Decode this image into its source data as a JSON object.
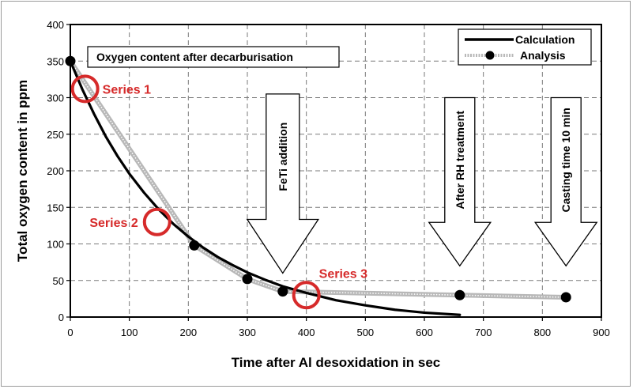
{
  "chart_data": {
    "type": "line",
    "xlabel": "Time after Al desoxidation in sec",
    "ylabel": "Total oxygen content in ppm",
    "xlim": [
      0,
      900
    ],
    "ylim": [
      0,
      400
    ],
    "xticks": [
      0,
      100,
      200,
      300,
      400,
      500,
      600,
      700,
      800,
      900
    ],
    "yticks": [
      0,
      50,
      100,
      150,
      200,
      250,
      300,
      350,
      400
    ],
    "grid": true,
    "legend_position": "top-right",
    "series": [
      {
        "name": "Calculation",
        "style": "solid-black-thick",
        "x": [
          0,
          20,
          40,
          60,
          80,
          100,
          125,
          150,
          175,
          200,
          225,
          250,
          275,
          300,
          330,
          360,
          400,
          450,
          500,
          550,
          600,
          660
        ],
        "y": [
          350,
          312,
          278,
          247,
          220,
          196,
          170,
          147,
          127,
          110,
          95,
          82,
          71,
          61,
          51,
          42,
          33,
          23,
          16,
          10,
          6,
          3
        ]
      },
      {
        "name": "Analysis",
        "style": "grey-dotted-with-black-markers",
        "x": [
          0,
          210,
          300,
          360,
          660,
          840
        ],
        "y": [
          350,
          98,
          52,
          35,
          30,
          27
        ]
      }
    ],
    "annotations": {
      "title_box": "Oxygen content after decarburisation",
      "series_labels": [
        {
          "text": "Series 1",
          "x": 25,
          "y": 312
        },
        {
          "text": "Series 2",
          "x": 147,
          "y": 130
        },
        {
          "text": "Series 3",
          "x": 400,
          "y": 30
        }
      ],
      "arrows": [
        {
          "text": "FeTi addition",
          "x": 360
        },
        {
          "text": "After RH treatment",
          "x": 660
        },
        {
          "text": "Casting time 10 min",
          "x": 840
        }
      ]
    }
  },
  "colors": {
    "calculation": "#000000",
    "analysis_line": "#b8b8b8",
    "marker": "#000000",
    "highlight": "#d62a2a",
    "grid": "#7a7a7a"
  }
}
